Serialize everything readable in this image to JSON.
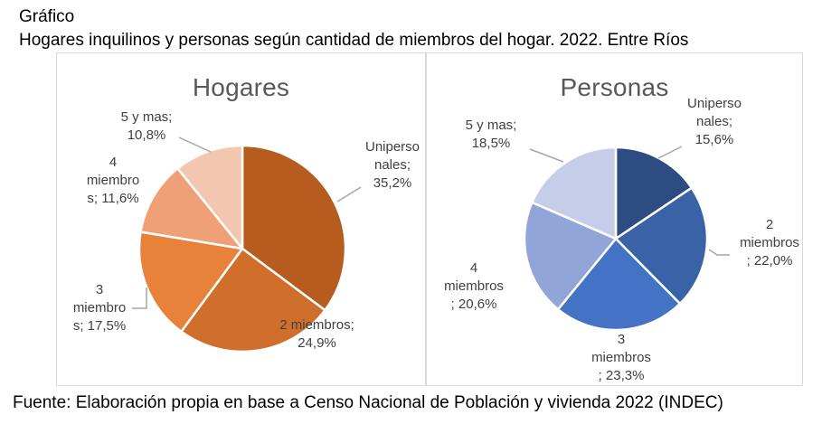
{
  "header": {
    "line1": "Gráfico",
    "line2": "Hogares inquilinos y personas según cantidad de miembros del hogar. 2022. Entre Ríos"
  },
  "footer": {
    "text": "Fuente: Elaboración propia en base a Censo Nacional de Población y vivienda 2022 (INDEC)"
  },
  "chart_data": [
    {
      "type": "pie",
      "title": "Hogares",
      "categories": [
        "Unipersonales",
        "2 miembros",
        "3 miembros",
        "4 miembros",
        "5 y mas"
      ],
      "values": [
        35.2,
        24.9,
        17.5,
        11.6,
        10.8
      ],
      "unit": "%",
      "value_labels": [
        "Uniperso\nnales;\n35,2%",
        "2 miembros;\n24,9%",
        "3\nmiembro\ns; 17,5%",
        "4\nmiembro\ns; 11,6%",
        "5 y mas;\n10,8%"
      ],
      "colors": [
        "#B65C1F",
        "#D06F2C",
        "#E8823B",
        "#EFA077",
        "#F3C7AF"
      ],
      "start_angle_deg": 0,
      "direction": "clockwise",
      "legend": "none",
      "label_style": "category-and-percent callouts with gray leader lines"
    },
    {
      "type": "pie",
      "title": "Personas",
      "categories": [
        "Unipersonales",
        "2 miembros",
        "3 miembros",
        "4 miembros",
        "5 y mas"
      ],
      "values": [
        15.6,
        22.0,
        23.3,
        20.6,
        18.5
      ],
      "unit": "%",
      "value_labels": [
        "Uniperso\nnales;\n15,6%",
        "2\nmiembros\n; 22,0%",
        "3\nmiembros\n; 23,3%",
        "4\nmiembros\n; 20,6%",
        "5 y mas;\n18,5%"
      ],
      "colors": [
        "#2D4D82",
        "#3A62A6",
        "#4472C4",
        "#92A5D8",
        "#C5CDE9"
      ],
      "start_angle_deg": 0,
      "direction": "clockwise",
      "legend": "none",
      "label_style": "category-and-percent callouts with gray leader lines"
    }
  ],
  "styles": {
    "title_color": "#595959",
    "label_color": "#404040",
    "leader_color": "#A6A6A6",
    "panel_border": "#D9D9D9",
    "slice_gap_color": "#FFFFFF"
  }
}
